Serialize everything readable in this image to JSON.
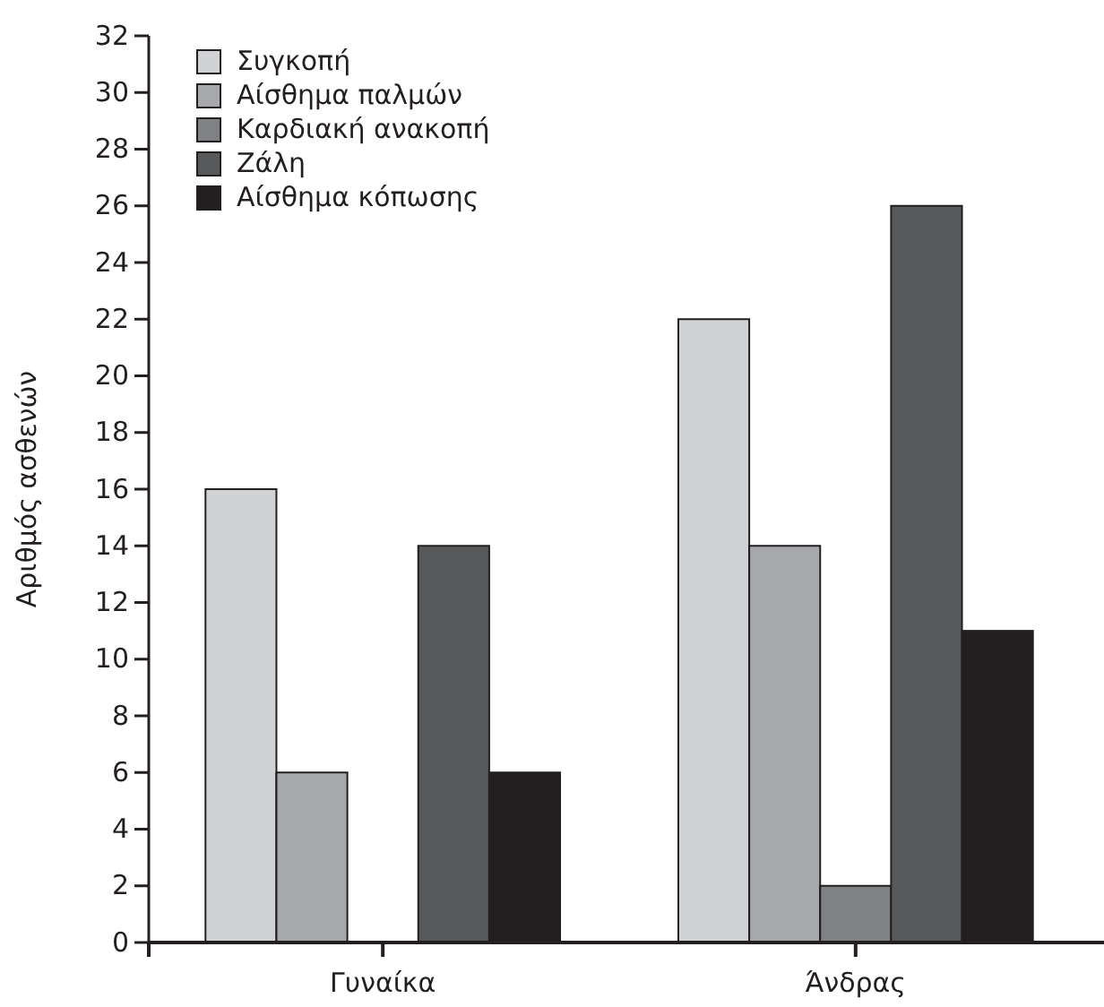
{
  "chart_data": {
    "type": "bar",
    "ylabel": "Αριθμός ασθενών",
    "categories": [
      "Γυναίκα",
      "Άνδρας"
    ],
    "series": [
      {
        "name": "Συγκοπή",
        "color": "#d1d2d4",
        "values": [
          16,
          22
        ]
      },
      {
        "name": "Αίσθημα παλμών",
        "color": "#a7a8ab",
        "values": [
          6,
          14
        ]
      },
      {
        "name": "Καρδιακή ανακοπή",
        "color": "#808184",
        "values": [
          0,
          2
        ]
      },
      {
        "name": "Ζάλη",
        "color": "#58595b",
        "values": [
          14,
          26
        ]
      },
      {
        "name": "Αίσθημα κόπωσης",
        "color": "#231f20",
        "values": [
          6,
          11
        ]
      }
    ],
    "ylim": [
      0,
      32
    ],
    "yticks": [
      0,
      2,
      4,
      6,
      8,
      10,
      12,
      14,
      16,
      18,
      20,
      22,
      24,
      26,
      28,
      30,
      32
    ],
    "grid": false,
    "legend": "top left"
  }
}
